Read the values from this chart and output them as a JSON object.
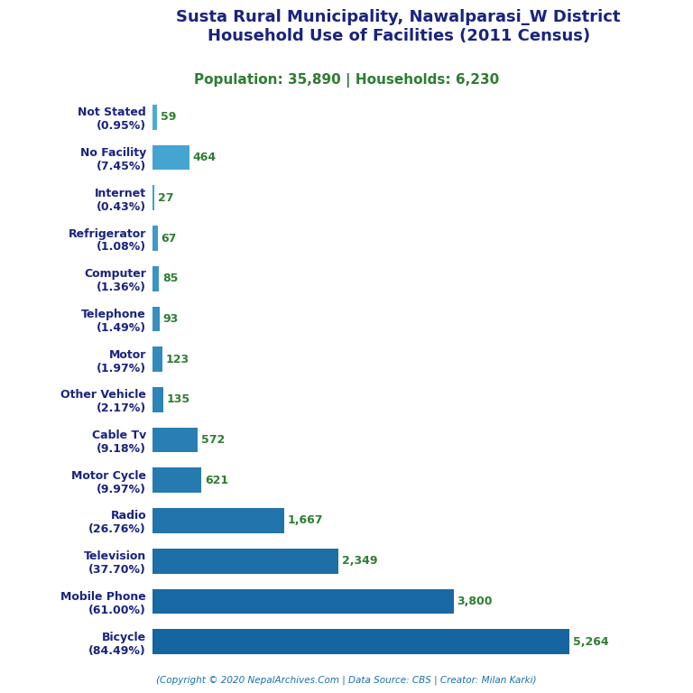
{
  "title_line1": "Susta Rural Municipality, Nawalparasi_W District",
  "title_line2": "Household Use of Facilities (2011 Census)",
  "subtitle": "Population: 35,890 | Households: 6,230",
  "footer": "(Copyright © 2020 NepalArchives.Com | Data Source: CBS | Creator: Milan Karki)",
  "categories": [
    "Bicycle\n(84.49%)",
    "Mobile Phone\n(61.00%)",
    "Television\n(37.70%)",
    "Radio\n(26.76%)",
    "Motor Cycle\n(9.97%)",
    "Cable Tv\n(9.18%)",
    "Other Vehicle\n(2.17%)",
    "Motor\n(1.97%)",
    "Telephone\n(1.49%)",
    "Computer\n(1.36%)",
    "Refrigerator\n(1.08%)",
    "Internet\n(0.43%)",
    "No Facility\n(7.45%)",
    "Not Stated\n(0.95%)"
  ],
  "values": [
    5264,
    3800,
    2349,
    1667,
    621,
    572,
    135,
    123,
    93,
    85,
    67,
    27,
    464,
    59
  ],
  "value_labels": [
    "5,264",
    "3,800",
    "2,349",
    "1,667",
    "621",
    "572",
    "135",
    "123",
    "93",
    "85",
    "67",
    "27",
    "464",
    "59"
  ],
  "title_color": "#1a237e",
  "subtitle_color": "#2e7d32",
  "value_label_color": "#2e7d32",
  "footer_color": "#1a6fad",
  "background_color": "#ffffff",
  "label_color": "#1a237e",
  "figsize": [
    7.68,
    7.68
  ],
  "dpi": 100
}
